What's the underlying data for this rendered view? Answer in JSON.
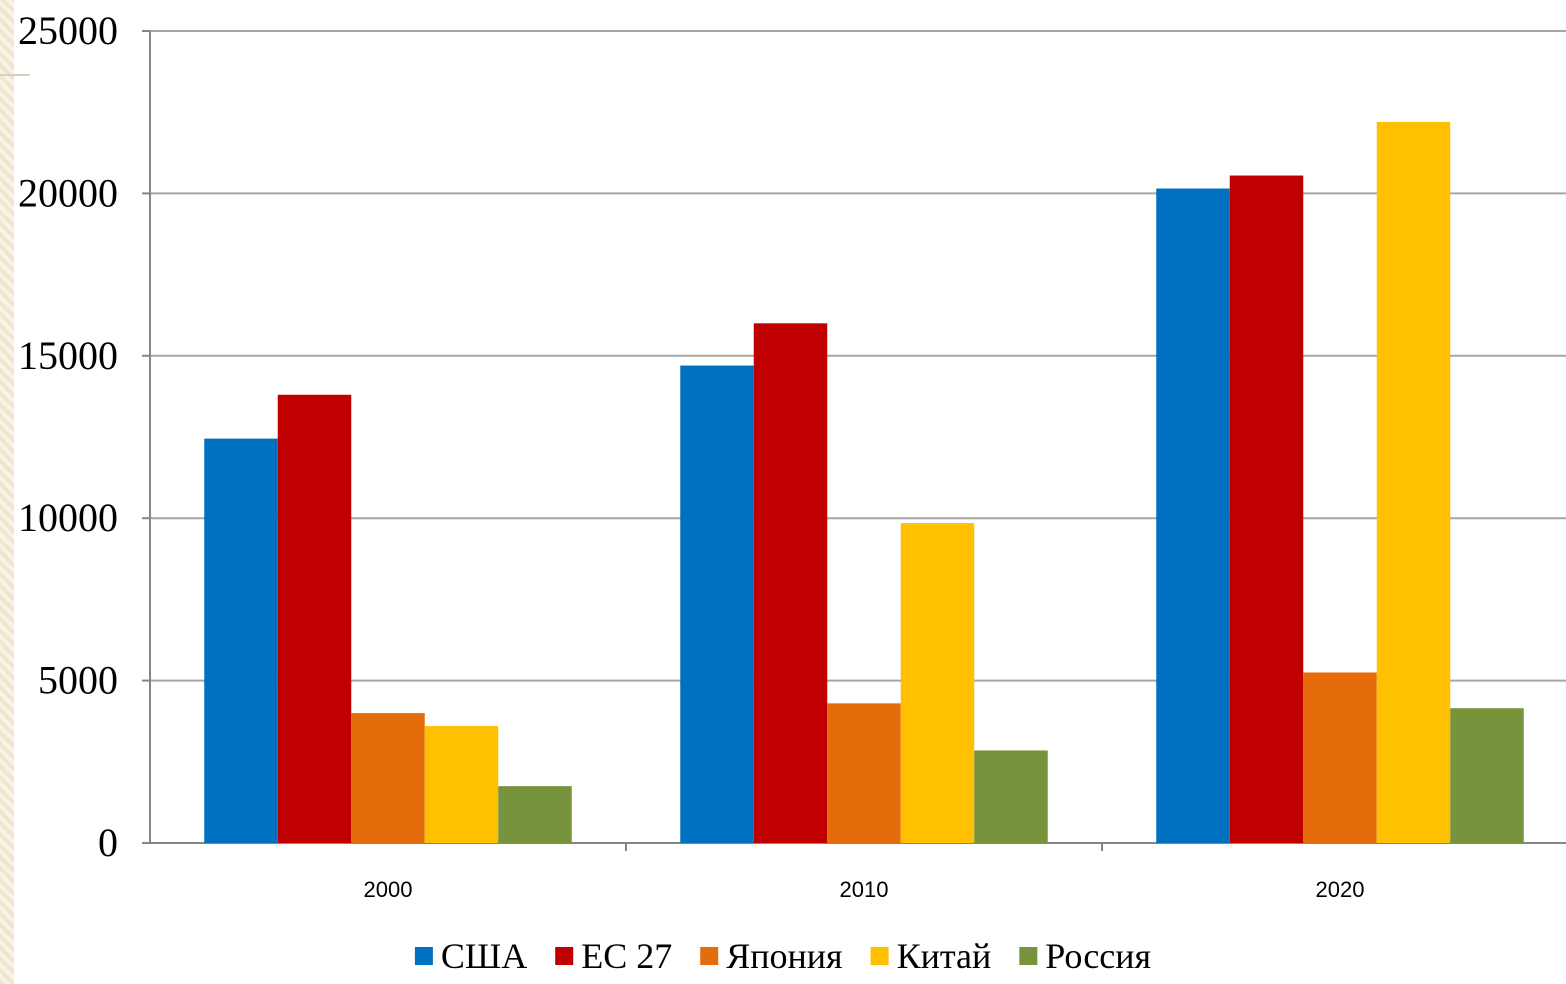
{
  "chart_data": {
    "type": "bar",
    "categories": [
      "2000",
      "2010",
      "2020"
    ],
    "series": [
      {
        "name": "США",
        "color": "#0070C0",
        "values": [
          12450,
          14700,
          20150
        ]
      },
      {
        "name": "ЕС 27",
        "color": "#C00000",
        "values": [
          13800,
          16000,
          20550
        ]
      },
      {
        "name": "Япония",
        "color": "#E46C0A",
        "values": [
          4000,
          4300,
          5250
        ]
      },
      {
        "name": "Китай",
        "color": "#FFC000",
        "values": [
          3600,
          9850,
          22200
        ]
      },
      {
        "name": "Россия",
        "color": "#77933C",
        "values": [
          1750,
          2850,
          4150
        ]
      }
    ],
    "ylim": [
      0,
      25000
    ],
    "yticks": [
      0,
      5000,
      10000,
      15000,
      20000,
      25000
    ],
    "grid": true,
    "legend": "bottom-center"
  }
}
